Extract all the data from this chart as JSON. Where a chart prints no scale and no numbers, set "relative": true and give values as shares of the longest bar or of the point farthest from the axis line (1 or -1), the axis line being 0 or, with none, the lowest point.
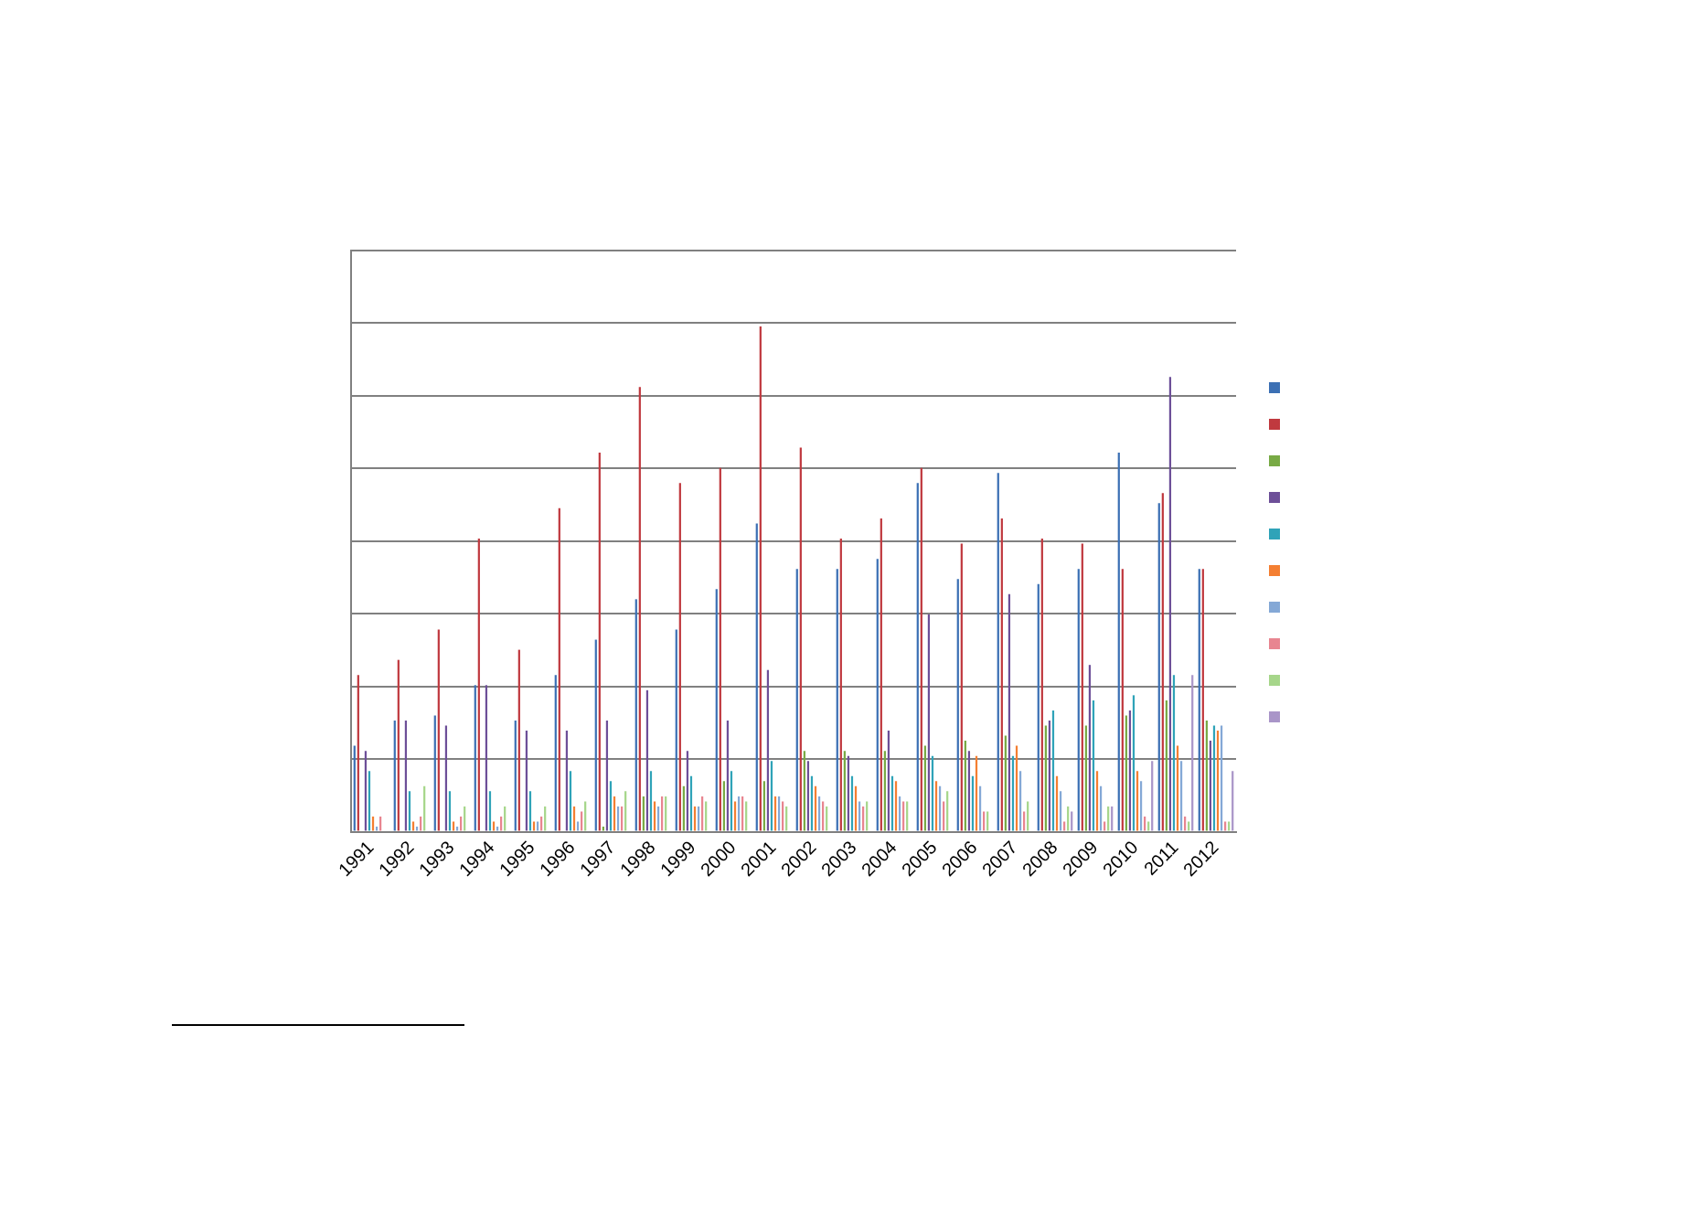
{
  "chart_data": {
    "type": "bar",
    "relative": true,
    "grid": "y",
    "categories": [
      "1991",
      "1992",
      "1993",
      "1994",
      "1995",
      "1996",
      "1997",
      "1998",
      "1999",
      "2000",
      "2001",
      "2002",
      "2003",
      "2004",
      "2005",
      "2006",
      "2007",
      "2008",
      "2009",
      "2010",
      "2011",
      "2012"
    ],
    "series": [
      {
        "color": "#3c70b4",
        "values": [
          0.17,
          0.22,
          0.23,
          0.29,
          0.22,
          0.31,
          0.38,
          0.46,
          0.4,
          0.48,
          0.61,
          0.52,
          0.52,
          0.54,
          0.69,
          0.5,
          0.71,
          0.49,
          0.52,
          0.75,
          0.65,
          0.52
        ]
      },
      {
        "color": "#c0393f",
        "values": [
          0.31,
          0.34,
          0.4,
          0.58,
          0.36,
          0.64,
          0.75,
          0.88,
          0.69,
          0.72,
          1,
          0.76,
          0.58,
          0.62,
          0.72,
          0.57,
          0.62,
          0.58,
          0.57,
          0.52,
          0.67,
          0.52
        ]
      },
      {
        "color": "#78aa45",
        "values": [
          null,
          null,
          null,
          null,
          null,
          null,
          0.01,
          0.07,
          0.09,
          0.1,
          0.1,
          0.16,
          0.16,
          0.16,
          0.17,
          0.18,
          0.19,
          0.21,
          0.21,
          0.23,
          0.26,
          0.22
        ]
      },
      {
        "color": "#6d4f98",
        "values": [
          0.16,
          0.22,
          0.21,
          0.29,
          0.2,
          0.2,
          0.22,
          0.28,
          0.16,
          0.22,
          0.32,
          0.14,
          0.15,
          0.2,
          0.43,
          0.16,
          0.47,
          0.22,
          0.33,
          0.24,
          0.9,
          0.18
        ]
      },
      {
        "color": "#2fa3b8",
        "values": [
          0.12,
          0.08,
          0.08,
          0.08,
          0.08,
          0.12,
          0.1,
          0.12,
          0.11,
          0.12,
          0.14,
          0.11,
          0.11,
          0.11,
          0.15,
          0.11,
          0.15,
          0.24,
          0.26,
          0.27,
          0.31,
          0.21
        ]
      },
      {
        "color": "#f47f32",
        "values": [
          0.03,
          0.02,
          0.02,
          0.02,
          0.02,
          0.05,
          0.07,
          0.06,
          0.05,
          0.06,
          0.07,
          0.09,
          0.09,
          0.1,
          0.1,
          0.15,
          0.17,
          0.11,
          0.12,
          0.12,
          0.17,
          0.2
        ]
      },
      {
        "color": "#84a8d6",
        "values": [
          0.01,
          0.01,
          0.01,
          0.01,
          0.02,
          0.02,
          0.05,
          0.05,
          0.05,
          0.07,
          0.07,
          0.07,
          0.06,
          0.07,
          0.09,
          0.09,
          0.12,
          0.08,
          0.09,
          0.1,
          0.14,
          0.21
        ]
      },
      {
        "color": "#e88590",
        "values": [
          0.03,
          0.03,
          0.03,
          0.03,
          0.03,
          0.04,
          0.05,
          0.07,
          0.07,
          0.07,
          0.06,
          0.06,
          0.05,
          0.06,
          0.06,
          0.04,
          0.04,
          0.02,
          0.02,
          0.03,
          0.03,
          0.02
        ]
      },
      {
        "color": "#a6d68a",
        "values": [
          null,
          0.09,
          0.05,
          0.05,
          0.05,
          0.06,
          0.08,
          0.07,
          0.06,
          0.06,
          0.05,
          0.05,
          0.06,
          0.06,
          0.08,
          0.04,
          0.06,
          0.05,
          0.05,
          0.02,
          0.02,
          0.02
        ]
      },
      {
        "color": "#a995c8",
        "values": [
          null,
          null,
          null,
          null,
          null,
          null,
          null,
          null,
          null,
          null,
          null,
          null,
          null,
          null,
          null,
          null,
          null,
          0.04,
          0.05,
          0.14,
          0.31,
          0.12
        ]
      }
    ]
  }
}
